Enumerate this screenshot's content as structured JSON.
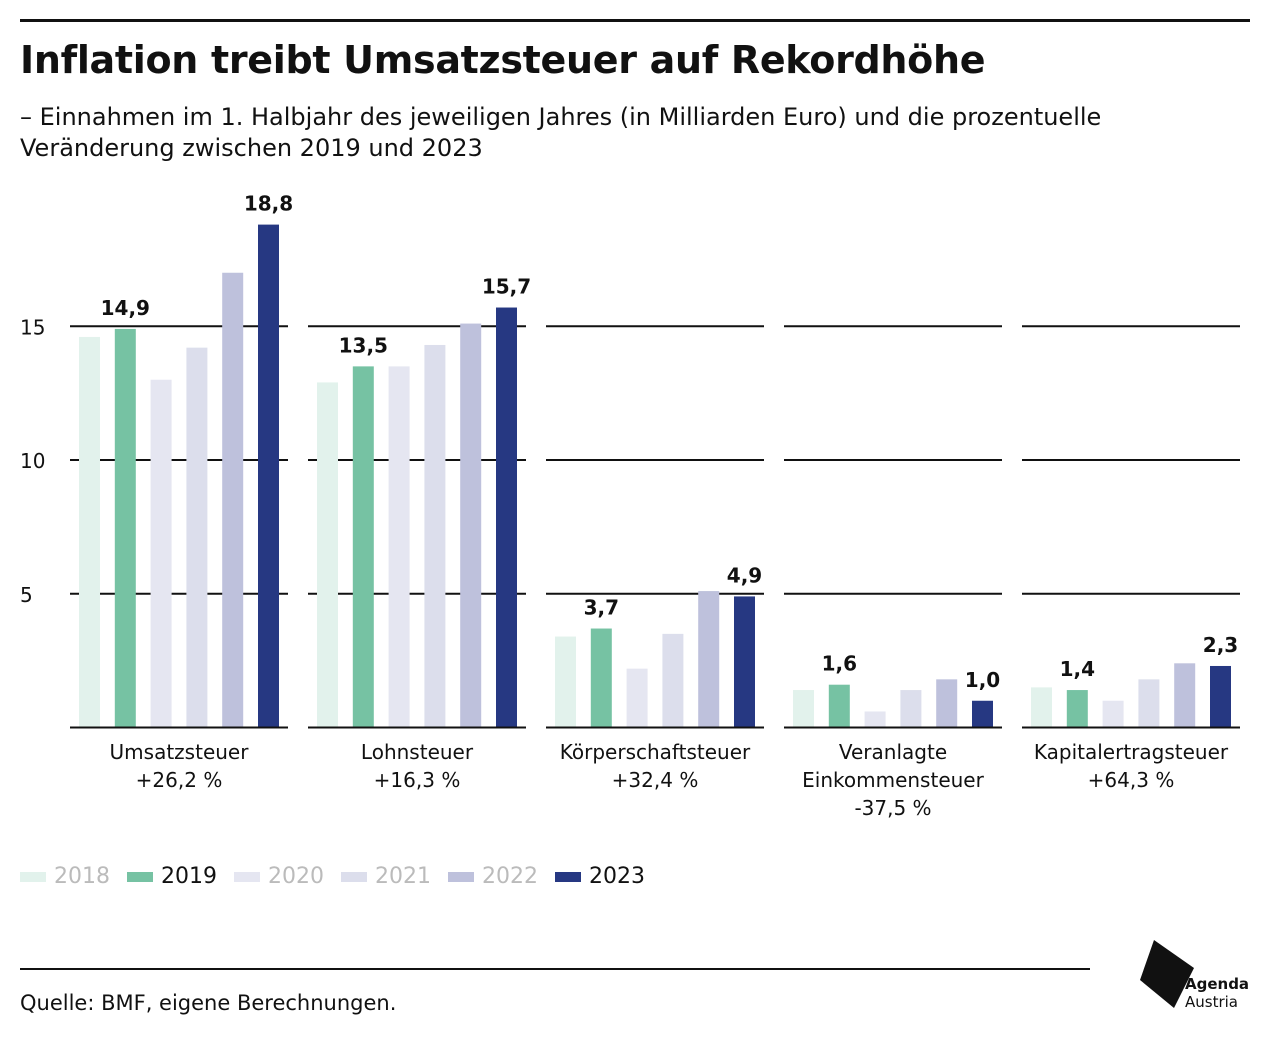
{
  "title": "Inflation treibt Umsatzsteuer auf Rekordhöhe",
  "subtitle": "– Einnahmen im 1. Halbjahr des jeweiligen Jahres (in Milliarden Euro) und die prozentuelle Veränderung zwischen 2019 und 2023",
  "source": "Quelle: BMF, eigene Berechnungen.",
  "logo": {
    "line1": "Agenda",
    "line2": "Austria"
  },
  "chart_data": {
    "type": "bar",
    "ylim": [
      0,
      20
    ],
    "yticks": [
      5,
      10,
      15
    ],
    "ytick_labels": [
      "5",
      "10",
      "15"
    ],
    "grid": true,
    "legend_position": "bottom-left",
    "series": [
      {
        "name": "2018",
        "color": "#e2f2ec",
        "label_color": "#bbbbbb"
      },
      {
        "name": "2019",
        "color": "#76c2a3",
        "label_color": "#111111"
      },
      {
        "name": "2020",
        "color": "#e5e6f1",
        "label_color": "#bbbbbb"
      },
      {
        "name": "2021",
        "color": "#dcdeec",
        "label_color": "#bbbbbb"
      },
      {
        "name": "2022",
        "color": "#bec1dc",
        "label_color": "#bbbbbb"
      },
      {
        "name": "2023",
        "color": "#263882",
        "label_color": "#111111"
      }
    ],
    "groups": [
      {
        "label": [
          "Umsatzsteuer",
          "+26,2 %"
        ],
        "values": [
          14.6,
          14.9,
          13.0,
          14.2,
          17.0,
          18.8
        ],
        "labels": {
          "2019": "14,9",
          "2023": "18,8"
        }
      },
      {
        "label": [
          "Lohnsteuer",
          "+16,3 %"
        ],
        "values": [
          12.9,
          13.5,
          13.5,
          14.3,
          15.1,
          15.7
        ],
        "labels": {
          "2019": "13,5",
          "2023": "15,7"
        }
      },
      {
        "label": [
          "Körperschaftsteuer",
          "+32,4 %"
        ],
        "values": [
          3.4,
          3.7,
          2.2,
          3.5,
          5.1,
          4.9
        ],
        "labels": {
          "2019": "3,7",
          "2023": "4,9"
        }
      },
      {
        "label": [
          "Veranlagte",
          "Einkommensteuer",
          "-37,5 %"
        ],
        "values": [
          1.4,
          1.6,
          0.6,
          1.4,
          1.8,
          1.0
        ],
        "labels": {
          "2019": "1,6",
          "2023": "1,0"
        }
      },
      {
        "label": [
          "Kapitalertragsteuer",
          "+64,3 %"
        ],
        "values": [
          1.5,
          1.4,
          1.0,
          1.8,
          2.4,
          2.3
        ],
        "labels": {
          "2019": "1,4",
          "2023": "2,3"
        }
      }
    ]
  }
}
